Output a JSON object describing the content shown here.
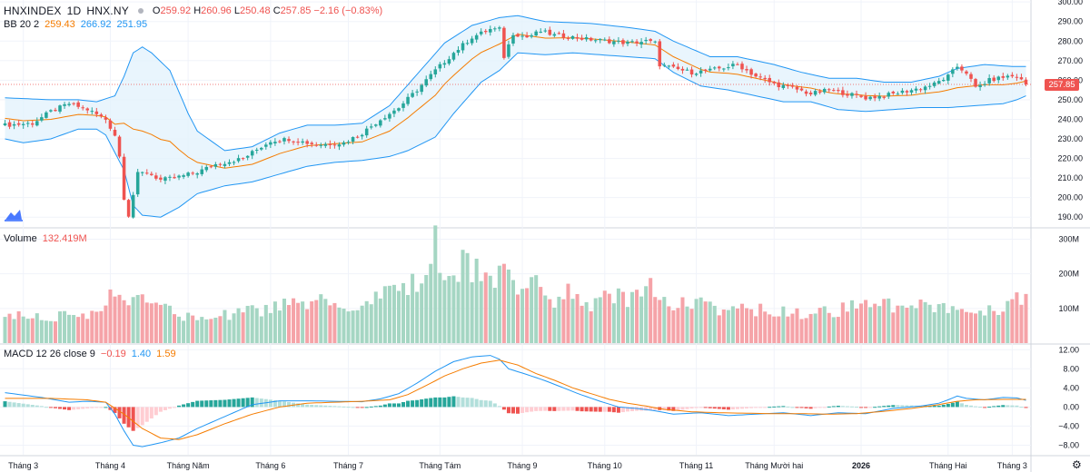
{
  "header": {
    "symbol": "HNXINDEX",
    "interval": "1D",
    "exchange": "HNX.NY",
    "open_label": "O",
    "open": "259.92",
    "high_label": "H",
    "high": "260.96",
    "low_label": "L",
    "low": "250.48",
    "close_label": "C",
    "close": "257.85",
    "change": "−2.16 (−0.83%)"
  },
  "bb_legend": {
    "name": "BB 20 2",
    "middle": "259.43",
    "upper": "266.92",
    "lower": "251.95"
  },
  "volume_legend": {
    "name": "Volume",
    "value": "132.419M"
  },
  "macd_legend": {
    "name": "MACD 12 26 close 9",
    "hist": "−0.19",
    "macd": "1.40",
    "signal": "1.59"
  },
  "last_price_tag": "257.85",
  "colors": {
    "up": "#26a69a",
    "down": "#ef5350",
    "vol_up": "#a5d6c3",
    "vol_down": "#f5a3a8",
    "bb_band": "#2196f3",
    "bb_basis": "#f57c00",
    "bb_fill": "#e3f2fd",
    "macd": "#2196f3",
    "signal": "#f57c00"
  },
  "chart_data": [
    {
      "type": "candlestick",
      "title": "HNXINDEX · 1D · HNX.NY",
      "price_axis_ticks": [
        "300.00",
        "290.00",
        "280.00",
        "270.00",
        "260.00",
        "250.00",
        "240.00",
        "230.00",
        "220.00",
        "210.00",
        "200.00",
        "190.00"
      ],
      "ylim": [
        185,
        301
      ],
      "x_ticks": [
        "Tháng 3",
        "Tháng 4",
        "Tháng Năm",
        "Tháng 6",
        "Tháng 7",
        "Tháng Tám",
        "Tháng 9",
        "Tháng 10",
        "Tháng 11",
        "Tháng Mười hai",
        "2026",
        "Tháng Hai",
        "Tháng 3"
      ],
      "x_tick_bar_index": [
        4,
        23,
        40,
        58,
        75,
        95,
        113,
        131,
        151,
        168,
        187,
        206,
        220
      ],
      "bars": 224,
      "close_keyframes": [
        [
          0,
          237
        ],
        [
          6,
          238
        ],
        [
          10,
          244
        ],
        [
          14,
          248
        ],
        [
          18,
          245
        ],
        [
          22,
          240
        ],
        [
          24,
          232
        ],
        [
          25,
          221
        ],
        [
          26,
          200
        ],
        [
          27,
          191
        ],
        [
          29,
          212
        ],
        [
          31,
          213
        ],
        [
          34,
          209
        ],
        [
          37,
          210
        ],
        [
          42,
          213
        ],
        [
          46,
          217
        ],
        [
          52,
          220
        ],
        [
          58,
          229
        ],
        [
          62,
          230
        ],
        [
          68,
          227
        ],
        [
          74,
          228
        ],
        [
          78,
          233
        ],
        [
          82,
          240
        ],
        [
          86,
          246
        ],
        [
          90,
          255
        ],
        [
          94,
          265
        ],
        [
          98,
          274
        ],
        [
          102,
          282
        ],
        [
          106,
          286
        ],
        [
          108,
          286
        ],
        [
          109,
          272
        ],
        [
          111,
          284
        ],
        [
          114,
          282
        ],
        [
          117,
          285
        ],
        [
          120,
          283
        ],
        [
          124,
          282
        ],
        [
          127,
          281
        ],
        [
          132,
          280
        ],
        [
          136,
          279
        ],
        [
          140,
          280
        ],
        [
          142,
          279
        ],
        [
          143,
          268
        ],
        [
          146,
          266
        ],
        [
          150,
          264
        ],
        [
          154,
          265
        ],
        [
          160,
          268
        ],
        [
          164,
          262
        ],
        [
          168,
          258
        ],
        [
          172,
          256
        ],
        [
          176,
          253
        ],
        [
          180,
          255
        ],
        [
          184,
          253
        ],
        [
          188,
          251
        ],
        [
          192,
          252
        ],
        [
          196,
          254
        ],
        [
          200,
          256
        ],
        [
          203,
          258
        ],
        [
          206,
          262
        ],
        [
          208,
          267
        ],
        [
          210,
          264
        ],
        [
          212,
          256
        ],
        [
          215,
          260
        ],
        [
          219,
          262
        ],
        [
          221,
          262
        ],
        [
          223,
          257.85
        ]
      ],
      "bb_upper_keyframes": [
        [
          0,
          251
        ],
        [
          10,
          250
        ],
        [
          16,
          250
        ],
        [
          20,
          249
        ],
        [
          24,
          252
        ],
        [
          26,
          262
        ],
        [
          28,
          274
        ],
        [
          30,
          277
        ],
        [
          32,
          274
        ],
        [
          36,
          265
        ],
        [
          40,
          243
        ],
        [
          42,
          234
        ],
        [
          48,
          224
        ],
        [
          54,
          226
        ],
        [
          60,
          233
        ],
        [
          66,
          237
        ],
        [
          72,
          237
        ],
        [
          78,
          238
        ],
        [
          84,
          247
        ],
        [
          90,
          263
        ],
        [
          96,
          279
        ],
        [
          102,
          288
        ],
        [
          108,
          292
        ],
        [
          112,
          293
        ],
        [
          118,
          290
        ],
        [
          128,
          289
        ],
        [
          136,
          287
        ],
        [
          142,
          285
        ],
        [
          146,
          280
        ],
        [
          154,
          272
        ],
        [
          160,
          272
        ],
        [
          164,
          270
        ],
        [
          168,
          268
        ],
        [
          174,
          264
        ],
        [
          180,
          261
        ],
        [
          186,
          261
        ],
        [
          192,
          259
        ],
        [
          198,
          259
        ],
        [
          204,
          262
        ],
        [
          208,
          266
        ],
        [
          214,
          268
        ],
        [
          220,
          267
        ],
        [
          223,
          267
        ]
      ],
      "bb_lower_keyframes": [
        [
          0,
          230
        ],
        [
          4,
          228
        ],
        [
          10,
          230
        ],
        [
          16,
          235
        ],
        [
          20,
          235
        ],
        [
          22,
          232
        ],
        [
          26,
          214
        ],
        [
          28,
          196
        ],
        [
          30,
          191
        ],
        [
          34,
          190
        ],
        [
          38,
          195
        ],
        [
          42,
          202
        ],
        [
          48,
          206
        ],
        [
          54,
          208
        ],
        [
          60,
          212
        ],
        [
          66,
          216
        ],
        [
          72,
          218
        ],
        [
          78,
          219
        ],
        [
          84,
          221
        ],
        [
          88,
          224
        ],
        [
          94,
          231
        ],
        [
          98,
          243
        ],
        [
          104,
          259
        ],
        [
          108,
          265
        ],
        [
          112,
          274
        ],
        [
          118,
          273
        ],
        [
          124,
          274
        ],
        [
          130,
          273
        ],
        [
          136,
          272
        ],
        [
          142,
          271
        ],
        [
          146,
          264
        ],
        [
          152,
          257
        ],
        [
          158,
          255
        ],
        [
          164,
          252
        ],
        [
          170,
          249
        ],
        [
          176,
          249
        ],
        [
          182,
          245
        ],
        [
          188,
          244
        ],
        [
          194,
          245
        ],
        [
          200,
          246
        ],
        [
          206,
          246
        ],
        [
          212,
          247
        ],
        [
          218,
          248
        ],
        [
          221,
          250
        ],
        [
          223,
          252
        ]
      ]
    },
    {
      "type": "bar",
      "title": "Volume",
      "y_ticks": [
        "300M",
        "200M",
        "100M"
      ],
      "ylim": [
        0,
        330000000
      ],
      "volume_keyframes_M": [
        [
          0,
          72
        ],
        [
          10,
          78
        ],
        [
          20,
          80
        ],
        [
          24,
          147
        ],
        [
          25,
          140
        ],
        [
          26,
          128
        ],
        [
          30,
          118
        ],
        [
          34,
          112
        ],
        [
          38,
          78
        ],
        [
          42,
          70
        ],
        [
          50,
          82
        ],
        [
          56,
          95
        ],
        [
          60,
          108
        ],
        [
          66,
          100
        ],
        [
          70,
          118
        ],
        [
          74,
          92
        ],
        [
          78,
          100
        ],
        [
          82,
          130
        ],
        [
          86,
          150
        ],
        [
          90,
          172
        ],
        [
          93,
          215
        ],
        [
          94,
          322
        ],
        [
          95,
          200
        ],
        [
          98,
          185
        ],
        [
          100,
          220
        ],
        [
          104,
          212
        ],
        [
          108,
          190
        ],
        [
          112,
          165
        ],
        [
          116,
          168
        ],
        [
          120,
          120
        ],
        [
          124,
          150
        ],
        [
          128,
          110
        ],
        [
          132,
          128
        ],
        [
          136,
          125
        ],
        [
          138,
          130
        ],
        [
          140,
          185
        ],
        [
          142,
          118
        ],
        [
          146,
          112
        ],
        [
          150,
          120
        ],
        [
          156,
          92
        ],
        [
          164,
          95
        ],
        [
          170,
          90
        ],
        [
          176,
          85
        ],
        [
          182,
          92
        ],
        [
          186,
          120
        ],
        [
          190,
          108
        ],
        [
          196,
          98
        ],
        [
          200,
          102
        ],
        [
          206,
          96
        ],
        [
          210,
          90
        ],
        [
          214,
          88
        ],
        [
          218,
          92
        ],
        [
          220,
          120
        ],
        [
          222,
          132
        ]
      ]
    },
    {
      "type": "line",
      "title": "MACD 12 26 close 9",
      "y_ticks": [
        "12.00",
        "8.00",
        "4.00",
        "0.00",
        "−4.00",
        "−8.00"
      ],
      "ylim": [
        -10,
        13
      ],
      "macd_keyframes": [
        [
          0,
          3.0
        ],
        [
          8,
          2.0
        ],
        [
          14,
          1.0
        ],
        [
          18,
          1.2
        ],
        [
          22,
          1.0
        ],
        [
          24,
          -1.5
        ],
        [
          26,
          -5
        ],
        [
          28,
          -8
        ],
        [
          30,
          -8.3
        ],
        [
          34,
          -7.5
        ],
        [
          38,
          -6.5
        ],
        [
          42,
          -4.5
        ],
        [
          48,
          -2
        ],
        [
          54,
          0.5
        ],
        [
          60,
          1.3
        ],
        [
          66,
          1.3
        ],
        [
          72,
          1.2
        ],
        [
          78,
          1.1
        ],
        [
          82,
          1.7
        ],
        [
          86,
          2.8
        ],
        [
          90,
          5
        ],
        [
          94,
          7.5
        ],
        [
          98,
          9.5
        ],
        [
          102,
          10.5
        ],
        [
          106,
          10.8
        ],
        [
          108,
          10
        ],
        [
          110,
          8
        ],
        [
          114,
          6.8
        ],
        [
          118,
          5.5
        ],
        [
          122,
          4
        ],
        [
          126,
          2.5
        ],
        [
          130,
          1.2
        ],
        [
          134,
          0
        ],
        [
          138,
          -0.3
        ],
        [
          142,
          -0.8
        ],
        [
          146,
          -1.5
        ],
        [
          152,
          -1.2
        ],
        [
          158,
          -1.8
        ],
        [
          164,
          -1.5
        ],
        [
          170,
          -1.2
        ],
        [
          176,
          -1.8
        ],
        [
          182,
          -1.2
        ],
        [
          188,
          -1.4
        ],
        [
          194,
          -0.3
        ],
        [
          200,
          0.2
        ],
        [
          204,
          0.8
        ],
        [
          206,
          1.5
        ],
        [
          208,
          2.3
        ],
        [
          210,
          1.8
        ],
        [
          214,
          1.5
        ],
        [
          218,
          2.0
        ],
        [
          221,
          1.9
        ],
        [
          223,
          1.4
        ]
      ],
      "signal_keyframes": [
        [
          0,
          1.8
        ],
        [
          10,
          1.8
        ],
        [
          18,
          1.5
        ],
        [
          22,
          1.0
        ],
        [
          26,
          -1.5
        ],
        [
          30,
          -4.5
        ],
        [
          34,
          -6.5
        ],
        [
          38,
          -6.8
        ],
        [
          42,
          -5.8
        ],
        [
          48,
          -3.5
        ],
        [
          54,
          -1.5
        ],
        [
          60,
          0
        ],
        [
          66,
          0.8
        ],
        [
          72,
          1.0
        ],
        [
          78,
          1.2
        ],
        [
          84,
          1.5
        ],
        [
          88,
          2.6
        ],
        [
          92,
          4.5
        ],
        [
          96,
          6.5
        ],
        [
          100,
          8
        ],
        [
          104,
          9.2
        ],
        [
          108,
          9.8
        ],
        [
          112,
          8.8
        ],
        [
          116,
          7
        ],
        [
          120,
          5.6
        ],
        [
          124,
          4
        ],
        [
          128,
          2.8
        ],
        [
          132,
          1.6
        ],
        [
          136,
          0.8
        ],
        [
          140,
          0.2
        ],
        [
          144,
          -0.5
        ],
        [
          150,
          -1.0
        ],
        [
          156,
          -1.2
        ],
        [
          162,
          -1.3
        ],
        [
          168,
          -1.4
        ],
        [
          174,
          -1.4
        ],
        [
          180,
          -1.5
        ],
        [
          186,
          -1.4
        ],
        [
          192,
          -0.9
        ],
        [
          198,
          -0.3
        ],
        [
          204,
          0.5
        ],
        [
          208,
          1.2
        ],
        [
          212,
          1.5
        ],
        [
          218,
          1.6
        ],
        [
          223,
          1.6
        ]
      ]
    }
  ]
}
